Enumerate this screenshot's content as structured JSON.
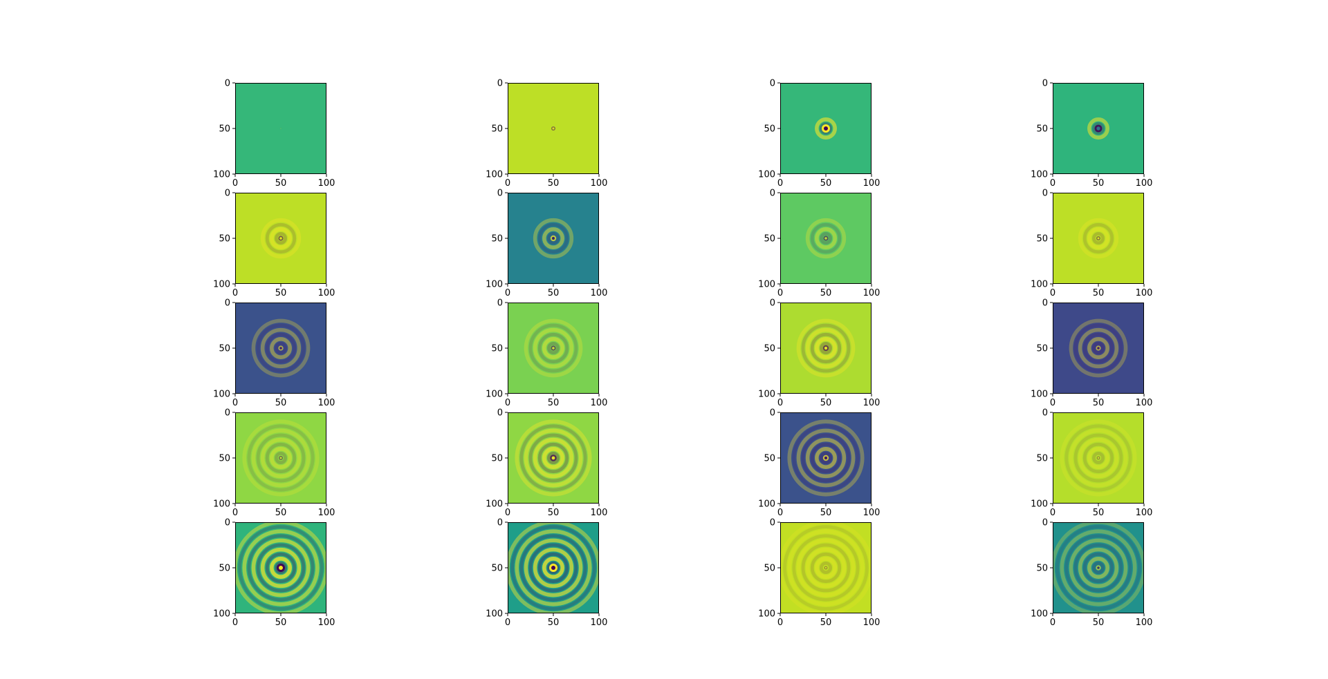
{
  "chart_data": {
    "type": "heatmap",
    "layout": {
      "rows": 5,
      "cols": 4
    },
    "colormap": "viridis",
    "axis": {
      "xlim": [
        0,
        100
      ],
      "ylim": [
        100,
        0
      ],
      "xticks": [
        0,
        50,
        100
      ],
      "yticks": [
        0,
        50,
        100
      ],
      "xticklabels": [
        "0",
        "50",
        "100"
      ],
      "yticklabels": [
        "0",
        "50",
        "100"
      ]
    },
    "ripple_center": [
      50,
      50
    ],
    "panels": [
      {
        "bg": "#35b779",
        "rings": 0,
        "center": "#5ec962",
        "amp": 0.05
      },
      {
        "bg": "#bddf26",
        "rings": 0,
        "center": "#fde725",
        "amp": 0.5
      },
      {
        "bg": "#35b779",
        "rings": 1,
        "center": "#440154",
        "amp": 1.0
      },
      {
        "bg": "#2fb47c",
        "rings": 1,
        "center": "#31688e",
        "amp": 0.9
      },
      {
        "bg": "#bddf26",
        "rings": 2,
        "center": "#fde725",
        "amp": 0.6
      },
      {
        "bg": "#26828e",
        "rings": 2,
        "center": "#440154",
        "amp": 0.7
      },
      {
        "bg": "#5ec962",
        "rings": 2,
        "center": "#fde725",
        "amp": 0.6
      },
      {
        "bg": "#bddf26",
        "rings": 2,
        "center": "#fde725",
        "amp": 0.5
      },
      {
        "bg": "#3b528b",
        "rings": 3,
        "center": "#440154",
        "amp": 0.6
      },
      {
        "bg": "#7ad151",
        "rings": 3,
        "center": "#fde725",
        "amp": 0.6
      },
      {
        "bg": "#addc30",
        "rings": 3,
        "center": "#fde725",
        "amp": 0.7
      },
      {
        "bg": "#3e4989",
        "rings": 3,
        "center": "#440154",
        "amp": 0.6
      },
      {
        "bg": "#8fd744",
        "rings": 4,
        "center": "#fde725",
        "amp": 0.5
      },
      {
        "bg": "#8fd744",
        "rings": 4,
        "center": "#fde725",
        "amp": 0.8
      },
      {
        "bg": "#3b528b",
        "rings": 4,
        "center": "#440154",
        "amp": 0.7
      },
      {
        "bg": "#b5de2b",
        "rings": 4,
        "center": "#fde725",
        "amp": 0.4
      },
      {
        "bg": "#2fb47c",
        "rings": 5,
        "center": "#fde725",
        "amp": 1.0
      },
      {
        "bg": "#1f9e89",
        "rings": 5,
        "center": "#440154",
        "amp": 1.0
      },
      {
        "bg": "#c2df23",
        "rings": 5,
        "center": "#fde725",
        "amp": 0.4
      },
      {
        "bg": "#21918c",
        "rings": 5,
        "center": "#440154",
        "amp": 0.6
      }
    ]
  }
}
